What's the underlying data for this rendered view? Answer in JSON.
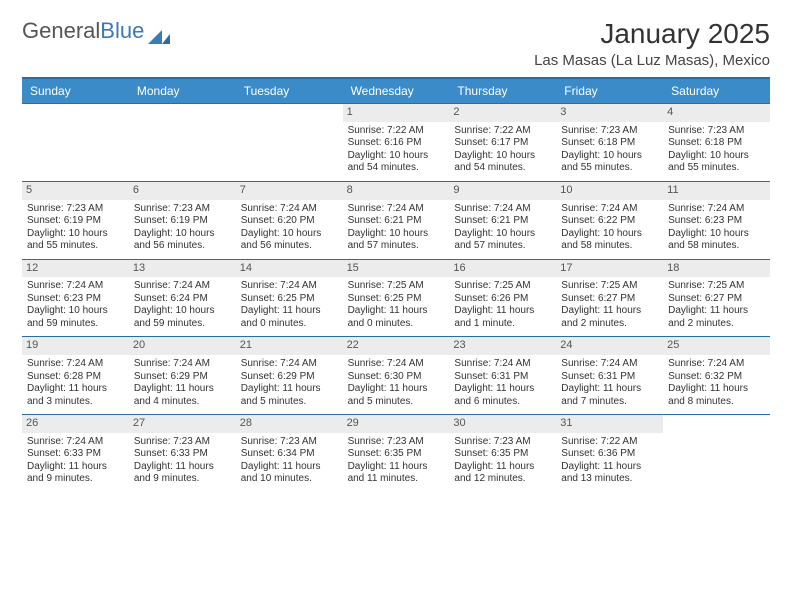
{
  "logo": {
    "text1": "General",
    "text2": "Blue"
  },
  "title": "January 2025",
  "location": "Las Masas (La Luz Masas), Mexico",
  "colors": {
    "header_bg": "#3b8bc9",
    "header_text": "#ffffff",
    "border": "#2d6ca2",
    "daynum_bg": "#ececec",
    "text": "#333333"
  },
  "day_names": [
    "Sunday",
    "Monday",
    "Tuesday",
    "Wednesday",
    "Thursday",
    "Friday",
    "Saturday"
  ],
  "weeks": [
    [
      {
        "empty": true
      },
      {
        "empty": true
      },
      {
        "empty": true
      },
      {
        "day": "1",
        "sunrise": "Sunrise: 7:22 AM",
        "sunset": "Sunset: 6:16 PM",
        "daylight1": "Daylight: 10 hours",
        "daylight2": "and 54 minutes."
      },
      {
        "day": "2",
        "sunrise": "Sunrise: 7:22 AM",
        "sunset": "Sunset: 6:17 PM",
        "daylight1": "Daylight: 10 hours",
        "daylight2": "and 54 minutes."
      },
      {
        "day": "3",
        "sunrise": "Sunrise: 7:23 AM",
        "sunset": "Sunset: 6:18 PM",
        "daylight1": "Daylight: 10 hours",
        "daylight2": "and 55 minutes."
      },
      {
        "day": "4",
        "sunrise": "Sunrise: 7:23 AM",
        "sunset": "Sunset: 6:18 PM",
        "daylight1": "Daylight: 10 hours",
        "daylight2": "and 55 minutes."
      }
    ],
    [
      {
        "day": "5",
        "sunrise": "Sunrise: 7:23 AM",
        "sunset": "Sunset: 6:19 PM",
        "daylight1": "Daylight: 10 hours",
        "daylight2": "and 55 minutes."
      },
      {
        "day": "6",
        "sunrise": "Sunrise: 7:23 AM",
        "sunset": "Sunset: 6:19 PM",
        "daylight1": "Daylight: 10 hours",
        "daylight2": "and 56 minutes."
      },
      {
        "day": "7",
        "sunrise": "Sunrise: 7:24 AM",
        "sunset": "Sunset: 6:20 PM",
        "daylight1": "Daylight: 10 hours",
        "daylight2": "and 56 minutes."
      },
      {
        "day": "8",
        "sunrise": "Sunrise: 7:24 AM",
        "sunset": "Sunset: 6:21 PM",
        "daylight1": "Daylight: 10 hours",
        "daylight2": "and 57 minutes."
      },
      {
        "day": "9",
        "sunrise": "Sunrise: 7:24 AM",
        "sunset": "Sunset: 6:21 PM",
        "daylight1": "Daylight: 10 hours",
        "daylight2": "and 57 minutes."
      },
      {
        "day": "10",
        "sunrise": "Sunrise: 7:24 AM",
        "sunset": "Sunset: 6:22 PM",
        "daylight1": "Daylight: 10 hours",
        "daylight2": "and 58 minutes."
      },
      {
        "day": "11",
        "sunrise": "Sunrise: 7:24 AM",
        "sunset": "Sunset: 6:23 PM",
        "daylight1": "Daylight: 10 hours",
        "daylight2": "and 58 minutes."
      }
    ],
    [
      {
        "day": "12",
        "sunrise": "Sunrise: 7:24 AM",
        "sunset": "Sunset: 6:23 PM",
        "daylight1": "Daylight: 10 hours",
        "daylight2": "and 59 minutes."
      },
      {
        "day": "13",
        "sunrise": "Sunrise: 7:24 AM",
        "sunset": "Sunset: 6:24 PM",
        "daylight1": "Daylight: 10 hours",
        "daylight2": "and 59 minutes."
      },
      {
        "day": "14",
        "sunrise": "Sunrise: 7:24 AM",
        "sunset": "Sunset: 6:25 PM",
        "daylight1": "Daylight: 11 hours",
        "daylight2": "and 0 minutes."
      },
      {
        "day": "15",
        "sunrise": "Sunrise: 7:25 AM",
        "sunset": "Sunset: 6:25 PM",
        "daylight1": "Daylight: 11 hours",
        "daylight2": "and 0 minutes."
      },
      {
        "day": "16",
        "sunrise": "Sunrise: 7:25 AM",
        "sunset": "Sunset: 6:26 PM",
        "daylight1": "Daylight: 11 hours",
        "daylight2": "and 1 minute."
      },
      {
        "day": "17",
        "sunrise": "Sunrise: 7:25 AM",
        "sunset": "Sunset: 6:27 PM",
        "daylight1": "Daylight: 11 hours",
        "daylight2": "and 2 minutes."
      },
      {
        "day": "18",
        "sunrise": "Sunrise: 7:25 AM",
        "sunset": "Sunset: 6:27 PM",
        "daylight1": "Daylight: 11 hours",
        "daylight2": "and 2 minutes."
      }
    ],
    [
      {
        "day": "19",
        "sunrise": "Sunrise: 7:24 AM",
        "sunset": "Sunset: 6:28 PM",
        "daylight1": "Daylight: 11 hours",
        "daylight2": "and 3 minutes."
      },
      {
        "day": "20",
        "sunrise": "Sunrise: 7:24 AM",
        "sunset": "Sunset: 6:29 PM",
        "daylight1": "Daylight: 11 hours",
        "daylight2": "and 4 minutes."
      },
      {
        "day": "21",
        "sunrise": "Sunrise: 7:24 AM",
        "sunset": "Sunset: 6:29 PM",
        "daylight1": "Daylight: 11 hours",
        "daylight2": "and 5 minutes."
      },
      {
        "day": "22",
        "sunrise": "Sunrise: 7:24 AM",
        "sunset": "Sunset: 6:30 PM",
        "daylight1": "Daylight: 11 hours",
        "daylight2": "and 5 minutes."
      },
      {
        "day": "23",
        "sunrise": "Sunrise: 7:24 AM",
        "sunset": "Sunset: 6:31 PM",
        "daylight1": "Daylight: 11 hours",
        "daylight2": "and 6 minutes."
      },
      {
        "day": "24",
        "sunrise": "Sunrise: 7:24 AM",
        "sunset": "Sunset: 6:31 PM",
        "daylight1": "Daylight: 11 hours",
        "daylight2": "and 7 minutes."
      },
      {
        "day": "25",
        "sunrise": "Sunrise: 7:24 AM",
        "sunset": "Sunset: 6:32 PM",
        "daylight1": "Daylight: 11 hours",
        "daylight2": "and 8 minutes."
      }
    ],
    [
      {
        "day": "26",
        "sunrise": "Sunrise: 7:24 AM",
        "sunset": "Sunset: 6:33 PM",
        "daylight1": "Daylight: 11 hours",
        "daylight2": "and 9 minutes."
      },
      {
        "day": "27",
        "sunrise": "Sunrise: 7:23 AM",
        "sunset": "Sunset: 6:33 PM",
        "daylight1": "Daylight: 11 hours",
        "daylight2": "and 9 minutes."
      },
      {
        "day": "28",
        "sunrise": "Sunrise: 7:23 AM",
        "sunset": "Sunset: 6:34 PM",
        "daylight1": "Daylight: 11 hours",
        "daylight2": "and 10 minutes."
      },
      {
        "day": "29",
        "sunrise": "Sunrise: 7:23 AM",
        "sunset": "Sunset: 6:35 PM",
        "daylight1": "Daylight: 11 hours",
        "daylight2": "and 11 minutes."
      },
      {
        "day": "30",
        "sunrise": "Sunrise: 7:23 AM",
        "sunset": "Sunset: 6:35 PM",
        "daylight1": "Daylight: 11 hours",
        "daylight2": "and 12 minutes."
      },
      {
        "day": "31",
        "sunrise": "Sunrise: 7:22 AM",
        "sunset": "Sunset: 6:36 PM",
        "daylight1": "Daylight: 11 hours",
        "daylight2": "and 13 minutes."
      },
      {
        "empty": true
      }
    ]
  ]
}
